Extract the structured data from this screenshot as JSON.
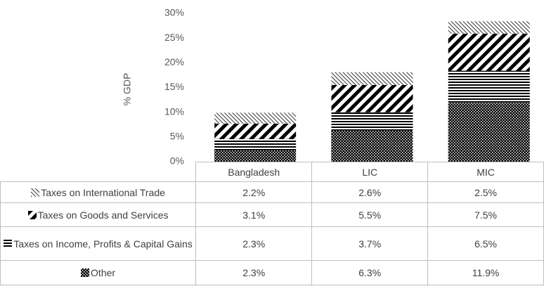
{
  "chart_data": {
    "type": "stacked-bar",
    "ylabel": "% GDP",
    "categories": [
      "Bangladesh",
      "LIC",
      "MIC"
    ],
    "ylim": [
      0,
      30
    ],
    "yticks": [
      {
        "value": 0,
        "label": "0%"
      },
      {
        "value": 5,
        "label": "5%"
      },
      {
        "value": 10,
        "label": "10%"
      },
      {
        "value": 15,
        "label": "15%"
      },
      {
        "value": 20,
        "label": "20%"
      },
      {
        "value": 25,
        "label": "25%"
      },
      {
        "value": 30,
        "label": "30%"
      }
    ],
    "series": [
      {
        "name": "Taxes on International Trade",
        "color": "#000000",
        "pattern": "thin-diagonal",
        "values": [
          2.2,
          2.6,
          2.5
        ],
        "value_labels": [
          "2.2%",
          "2.6%",
          "2.5%"
        ]
      },
      {
        "name": "Taxes on Goods and Services",
        "color": "#000000",
        "pattern": "wide-diagonal",
        "values": [
          3.1,
          5.5,
          7.5
        ],
        "value_labels": [
          "3.1%",
          "5.5%",
          "7.5%"
        ]
      },
      {
        "name": "Taxes on Income, Profits & Capital Gains",
        "color": "#000000",
        "pattern": "horizontal",
        "values": [
          2.3,
          3.7,
          6.5
        ],
        "value_labels": [
          "2.3%",
          "3.7%",
          "6.5%"
        ]
      },
      {
        "name": "Other",
        "color": "#000000",
        "pattern": "checker",
        "values": [
          2.3,
          6.3,
          11.9
        ],
        "value_labels": [
          "2.3%",
          "6.3%",
          "11.9%"
        ]
      }
    ]
  }
}
